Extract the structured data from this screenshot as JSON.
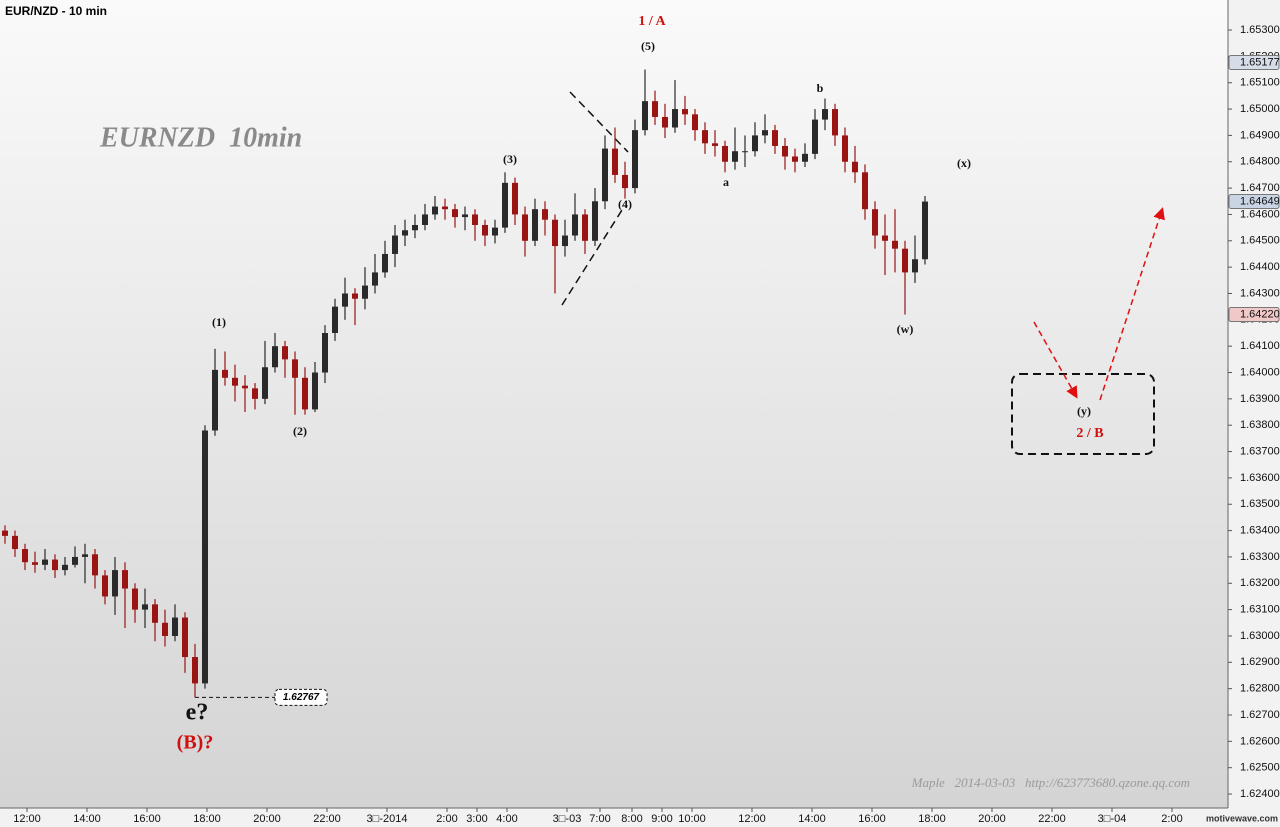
{
  "chart_data": {
    "type": "candlestick",
    "title": "EUR/NZD - 10 min",
    "watermark": "EURNZD  10min",
    "footer": "Maple   2014-03-03   http://623773680.qzone.qq.com",
    "brand": "motivewave.com",
    "up_color": "#2a2a2a",
    "down_color": "#9a1414",
    "xlim": [
      0,
      122.8
    ],
    "xticks": [
      {
        "value": 2.7,
        "label": "12:00"
      },
      {
        "value": 8.7,
        "label": "14:00"
      },
      {
        "value": 14.7,
        "label": "16:00"
      },
      {
        "value": 20.7,
        "label": "18:00"
      },
      {
        "value": 26.7,
        "label": "20:00"
      },
      {
        "value": 32.7,
        "label": "22:00"
      },
      {
        "value": 38.7,
        "label": "3□-2014"
      },
      {
        "value": 44.7,
        "label": "2:00"
      },
      {
        "value": 47.7,
        "label": "3:00"
      },
      {
        "value": 50.7,
        "label": "4:00"
      },
      {
        "value": 56.7,
        "label": "3□-03"
      },
      {
        "value": 60,
        "label": "7:00"
      },
      {
        "value": 63.2,
        "label": "8:00"
      },
      {
        "value": 66.2,
        "label": "9:00"
      },
      {
        "value": 69.2,
        "label": "10:00"
      },
      {
        "value": 75.2,
        "label": "12:00"
      },
      {
        "value": 81.2,
        "label": "14:00"
      },
      {
        "value": 87.2,
        "label": "16:00"
      },
      {
        "value": 93.2,
        "label": "18:00"
      },
      {
        "value": 99.2,
        "label": "20:00"
      },
      {
        "value": 105.2,
        "label": "22:00"
      },
      {
        "value": 111.2,
        "label": "3□-04"
      },
      {
        "value": 117.2,
        "label": "2:00"
      }
    ],
    "ylim": [
      1.62347,
      1.65414
    ],
    "yticks": [
      {
        "value": 1.624,
        "label": "1.62400"
      },
      {
        "value": 1.625,
        "label": "1.62500"
      },
      {
        "value": 1.626,
        "label": "1.62600"
      },
      {
        "value": 1.627,
        "label": "1.62700"
      },
      {
        "value": 1.628,
        "label": "1.62800"
      },
      {
        "value": 1.629,
        "label": "1.62900"
      },
      {
        "value": 1.63,
        "label": "1.63000"
      },
      {
        "value": 1.631,
        "label": "1.63100"
      },
      {
        "value": 1.632,
        "label": "1.63200"
      },
      {
        "value": 1.633,
        "label": "1.63300"
      },
      {
        "value": 1.634,
        "label": "1.63400"
      },
      {
        "value": 1.635,
        "label": "1.63500"
      },
      {
        "value": 1.636,
        "label": "1.63600"
      },
      {
        "value": 1.637,
        "label": "1.63700"
      },
      {
        "value": 1.638,
        "label": "1.63800"
      },
      {
        "value": 1.639,
        "label": "1.63900"
      },
      {
        "value": 1.64,
        "label": "1.64000"
      },
      {
        "value": 1.641,
        "label": "1.64100"
      },
      {
        "value": 1.642,
        "label": "1.64200"
      },
      {
        "value": 1.643,
        "label": "1.64300"
      },
      {
        "value": 1.644,
        "label": "1.64400"
      },
      {
        "value": 1.645,
        "label": "1.64500"
      },
      {
        "value": 1.646,
        "label": "1.64600"
      },
      {
        "value": 1.647,
        "label": "1.64700"
      },
      {
        "value": 1.648,
        "label": "1.64800"
      },
      {
        "value": 1.649,
        "label": "1.64900"
      },
      {
        "value": 1.65,
        "label": "1.65000"
      },
      {
        "value": 1.651,
        "label": "1.65100"
      },
      {
        "value": 1.652,
        "label": "1.65200"
      },
      {
        "value": 1.653,
        "label": "1.65300"
      }
    ],
    "price_markers": [
      1.65177,
      1.64649,
      {
        "value": 1.6422,
        "label": "1.64220"
      }
    ],
    "price_marker_colors": [
      "#d6dde8",
      "#c9d4e4",
      "#f0c8c8"
    ],
    "low_label": 1.62767,
    "annotations": [
      "1 / A",
      "(5)",
      "(3)",
      "(4)",
      "(1)",
      "(2)",
      "a",
      "b",
      "(x)",
      "(w)",
      "(y)",
      "2 / B",
      "e?",
      "(B)?"
    ],
    "ohlc": [
      [
        1.634,
        1.6342,
        1.6335,
        1.6338
      ],
      [
        1.6338,
        1.634,
        1.633,
        1.6333
      ],
      [
        1.6333,
        1.6335,
        1.6325,
        1.6328
      ],
      [
        1.6328,
        1.6332,
        1.6324,
        1.6327
      ],
      [
        1.6327,
        1.6333,
        1.6325,
        1.6329
      ],
      [
        1.6329,
        1.6331,
        1.6322,
        1.6325
      ],
      [
        1.6325,
        1.633,
        1.6323,
        1.6327
      ],
      [
        1.6327,
        1.6334,
        1.6326,
        1.633
      ],
      [
        1.633,
        1.6335,
        1.632,
        1.6331
      ],
      [
        1.6331,
        1.6333,
        1.6318,
        1.6323
      ],
      [
        1.6323,
        1.6325,
        1.6312,
        1.6315
      ],
      [
        1.6315,
        1.633,
        1.6308,
        1.6325
      ],
      [
        1.6325,
        1.6328,
        1.6303,
        1.6318
      ],
      [
        1.6318,
        1.632,
        1.6305,
        1.631
      ],
      [
        1.631,
        1.6318,
        1.6303,
        1.6312
      ],
      [
        1.6312,
        1.6314,
        1.6298,
        1.6305
      ],
      [
        1.6305,
        1.631,
        1.6296,
        1.63
      ],
      [
        1.63,
        1.6312,
        1.6298,
        1.6307
      ],
      [
        1.6307,
        1.6309,
        1.6286,
        1.6292
      ],
      [
        1.6292,
        1.6297,
        1.62767,
        1.6282
      ],
      [
        1.6282,
        1.638,
        1.628,
        1.6378
      ],
      [
        1.6378,
        1.6409,
        1.6376,
        1.6401
      ],
      [
        1.6401,
        1.6408,
        1.6395,
        1.6398
      ],
      [
        1.6398,
        1.6403,
        1.6389,
        1.6395
      ],
      [
        1.6395,
        1.6399,
        1.6385,
        1.6394
      ],
      [
        1.6394,
        1.6396,
        1.6386,
        1.639
      ],
      [
        1.639,
        1.6412,
        1.6388,
        1.6402
      ],
      [
        1.6402,
        1.6415,
        1.64,
        1.641
      ],
      [
        1.641,
        1.6412,
        1.6398,
        1.6405
      ],
      [
        1.6405,
        1.6408,
        1.6384,
        1.6398
      ],
      [
        1.6398,
        1.6402,
        1.6384,
        1.6386
      ],
      [
        1.6386,
        1.6404,
        1.6385,
        1.64
      ],
      [
        1.64,
        1.6418,
        1.6396,
        1.6415
      ],
      [
        1.6415,
        1.6428,
        1.6412,
        1.6425
      ],
      [
        1.6425,
        1.6436,
        1.642,
        1.643
      ],
      [
        1.643,
        1.6432,
        1.6418,
        1.6428
      ],
      [
        1.6428,
        1.644,
        1.6424,
        1.6433
      ],
      [
        1.6433,
        1.6445,
        1.643,
        1.6438
      ],
      [
        1.6438,
        1.645,
        1.6436,
        1.6445
      ],
      [
        1.6445,
        1.6456,
        1.644,
        1.6452
      ],
      [
        1.6452,
        1.6458,
        1.6448,
        1.6454
      ],
      [
        1.6454,
        1.646,
        1.6451,
        1.6456
      ],
      [
        1.6456,
        1.6464,
        1.6454,
        1.646
      ],
      [
        1.646,
        1.6467,
        1.6458,
        1.6463
      ],
      [
        1.6463,
        1.6466,
        1.6458,
        1.6462
      ],
      [
        1.6462,
        1.6464,
        1.6455,
        1.6459
      ],
      [
        1.6459,
        1.6463,
        1.6454,
        1.646
      ],
      [
        1.646,
        1.6462,
        1.645,
        1.6456
      ],
      [
        1.6456,
        1.6458,
        1.6448,
        1.6452
      ],
      [
        1.6452,
        1.6458,
        1.6449,
        1.6455
      ],
      [
        1.6455,
        1.6476,
        1.6453,
        1.6472
      ],
      [
        1.6472,
        1.6474,
        1.6456,
        1.646
      ],
      [
        1.646,
        1.6463,
        1.6444,
        1.645
      ],
      [
        1.645,
        1.6466,
        1.6448,
        1.6462
      ],
      [
        1.6462,
        1.6465,
        1.6452,
        1.6458
      ],
      [
        1.6458,
        1.646,
        1.643,
        1.6448
      ],
      [
        1.6448,
        1.6458,
        1.6444,
        1.6452
      ],
      [
        1.6452,
        1.6468,
        1.645,
        1.646
      ],
      [
        1.646,
        1.6462,
        1.6445,
        1.645
      ],
      [
        1.645,
        1.647,
        1.6448,
        1.6465
      ],
      [
        1.6465,
        1.649,
        1.6462,
        1.6485
      ],
      [
        1.6485,
        1.6493,
        1.6472,
        1.6475
      ],
      [
        1.6475,
        1.648,
        1.6466,
        1.647
      ],
      [
        1.647,
        1.6496,
        1.6468,
        1.6492
      ],
      [
        1.6492,
        1.6515,
        1.649,
        1.6503
      ],
      [
        1.6503,
        1.6507,
        1.6494,
        1.6497
      ],
      [
        1.6497,
        1.6502,
        1.6489,
        1.6493
      ],
      [
        1.6493,
        1.6511,
        1.6491,
        1.65
      ],
      [
        1.65,
        1.6505,
        1.6494,
        1.6498
      ],
      [
        1.6498,
        1.65,
        1.6488,
        1.6492
      ],
      [
        1.6492,
        1.6495,
        1.6483,
        1.6487
      ],
      [
        1.6487,
        1.6492,
        1.6482,
        1.6486
      ],
      [
        1.6486,
        1.6488,
        1.6476,
        1.648
      ],
      [
        1.648,
        1.6493,
        1.6477,
        1.6484
      ],
      [
        1.6484,
        1.649,
        1.6478,
        1.6484
      ],
      [
        1.6484,
        1.6495,
        1.6482,
        1.649
      ],
      [
        1.649,
        1.6498,
        1.6487,
        1.6492
      ],
      [
        1.6492,
        1.6494,
        1.6483,
        1.6486
      ],
      [
        1.6486,
        1.6489,
        1.6477,
        1.6482
      ],
      [
        1.6482,
        1.6485,
        1.6476,
        1.648
      ],
      [
        1.648,
        1.6487,
        1.6478,
        1.6483
      ],
      [
        1.6483,
        1.65,
        1.6481,
        1.6496
      ],
      [
        1.6496,
        1.6504,
        1.6492,
        1.65
      ],
      [
        1.65,
        1.6502,
        1.6486,
        1.649
      ],
      [
        1.649,
        1.6493,
        1.6476,
        1.648
      ],
      [
        1.648,
        1.6486,
        1.6472,
        1.6476
      ],
      [
        1.6476,
        1.6479,
        1.6458,
        1.6462
      ],
      [
        1.6462,
        1.6465,
        1.6447,
        1.6452
      ],
      [
        1.6452,
        1.646,
        1.6437,
        1.645
      ],
      [
        1.645,
        1.6462,
        1.6438,
        1.6447
      ],
      [
        1.6447,
        1.645,
        1.6422,
        1.6438
      ],
      [
        1.6438,
        1.6452,
        1.6434,
        1.6443
      ],
      [
        1.6443,
        1.6467,
        1.6441,
        1.64649
      ]
    ]
  }
}
